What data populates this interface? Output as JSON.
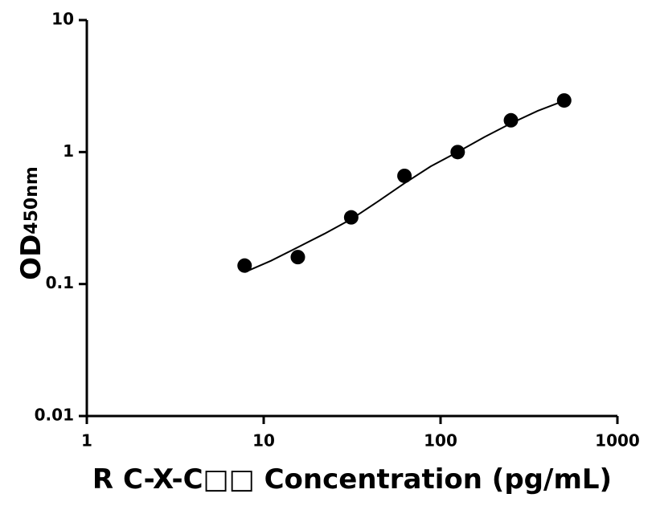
{
  "chart_data": {
    "type": "scatter",
    "x_label": "R C-X-C□□ Concentration (pg/mL)",
    "y_label": "OD",
    "y_label_subscript": "450nm",
    "x": [
      7.8,
      15.6,
      31.25,
      62.5,
      125,
      250,
      500
    ],
    "values": [
      0.138,
      0.16,
      0.32,
      0.66,
      1.0,
      1.74,
      2.46
    ],
    "color": "#000000",
    "curve": {
      "x": [
        7.8,
        11,
        15.6,
        22,
        31.25,
        44,
        62.5,
        88,
        125,
        177,
        250,
        354,
        500
      ],
      "values": [
        0.123,
        0.15,
        0.19,
        0.24,
        0.31,
        0.42,
        0.58,
        0.78,
        1.0,
        1.3,
        1.65,
        2.05,
        2.45
      ]
    },
    "xscale": "log",
    "yscale": "log",
    "xlim": [
      1,
      1000
    ],
    "ylim": [
      0.01,
      10
    ],
    "xticks": [
      1,
      10,
      100,
      1000
    ],
    "yticks": [
      0.01,
      0.1,
      1,
      10
    ]
  }
}
